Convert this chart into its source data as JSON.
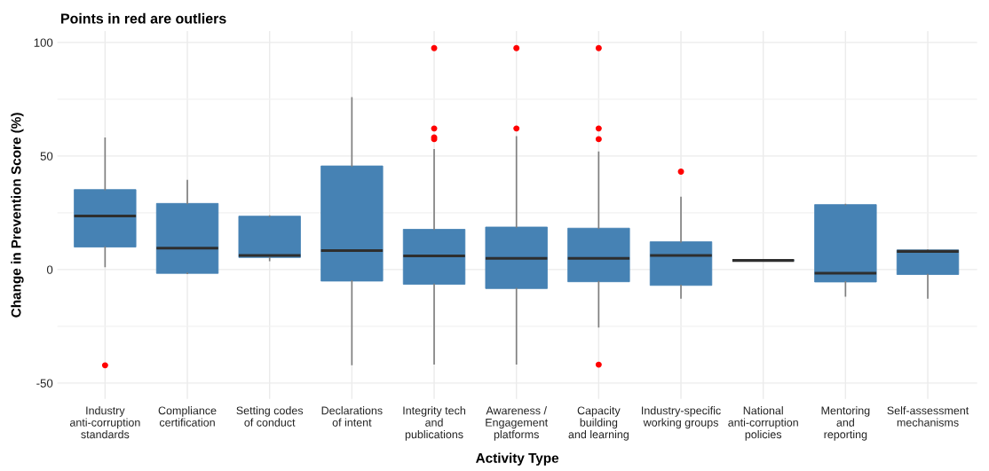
{
  "chart_data": {
    "type": "box",
    "title": "Points in red are outliers",
    "xlabel": "Activity Type",
    "ylabel": "Change in Prevention Score (%)",
    "categories": [
      "Industry\nanti-corruption\nstandards",
      "Compliance\ncertification",
      "Setting codes\nof conduct",
      "Declarations\nof intent",
      "Integrity tech\nand\npublications",
      "Awareness /\nEngagement\nplatforms",
      "Capacity\nbuilding\nand learning",
      "Industry-specific\nworking groups",
      "National\nanti-corruption\npolicies",
      "Mentoring\nand\nreporting",
      "Self-assessment\nmechanisms"
    ],
    "series": [
      {
        "color": "#4682b4",
        "boxes": [
          {
            "low": 1.3,
            "q1": 9.9,
            "median": 23.6,
            "q3": 35.2,
            "high": 57.8,
            "outliers": [
              -42.2
            ]
          },
          {
            "low": -1.7,
            "q1": -1.7,
            "median": 9.4,
            "q3": 29.1,
            "high": 39.2
          },
          {
            "low": 4.0,
            "q1": 5.3,
            "median": 6.2,
            "q3": 23.5,
            "high": 23.5
          },
          {
            "low": -41.8,
            "q1": -5.1,
            "median": 8.3,
            "q3": 45.6,
            "high": 75.6
          },
          {
            "low": -41.5,
            "q1": -6.5,
            "median": 6.0,
            "q3": 17.7,
            "high": 52.7,
            "outliers": [
              97.5,
              62.1,
              58.2,
              57.4
            ]
          },
          {
            "low": -41.5,
            "q1": -8.4,
            "median": 4.9,
            "q3": 18.7,
            "high": 58.4,
            "outliers": [
              97.5,
              62.1
            ]
          },
          {
            "low": -25.2,
            "q1": -5.4,
            "median": 4.9,
            "q3": 18.2,
            "high": 51.7,
            "outliers": [
              97.5,
              62.1,
              57.4,
              -41.9
            ]
          },
          {
            "low": -12.5,
            "q1": -7.0,
            "median": 6.2,
            "q3": 12.2,
            "high": 31.7,
            "outliers": [
              43.1
            ]
          },
          {
            "low": 4.0,
            "q1": 4.0,
            "median": 4.0,
            "q3": 4.0,
            "high": 4.0
          },
          {
            "low": -11.7,
            "q1": -5.5,
            "median": -1.6,
            "q3": 28.6,
            "high": 28.6
          },
          {
            "low": -12.5,
            "q1": -2.2,
            "median": 8.0,
            "q3": 8.6,
            "high": 8.6
          }
        ]
      }
    ],
    "ylim": [
      -57,
      105
    ],
    "yticks": [
      -50,
      0,
      50,
      100
    ],
    "grid": true
  }
}
